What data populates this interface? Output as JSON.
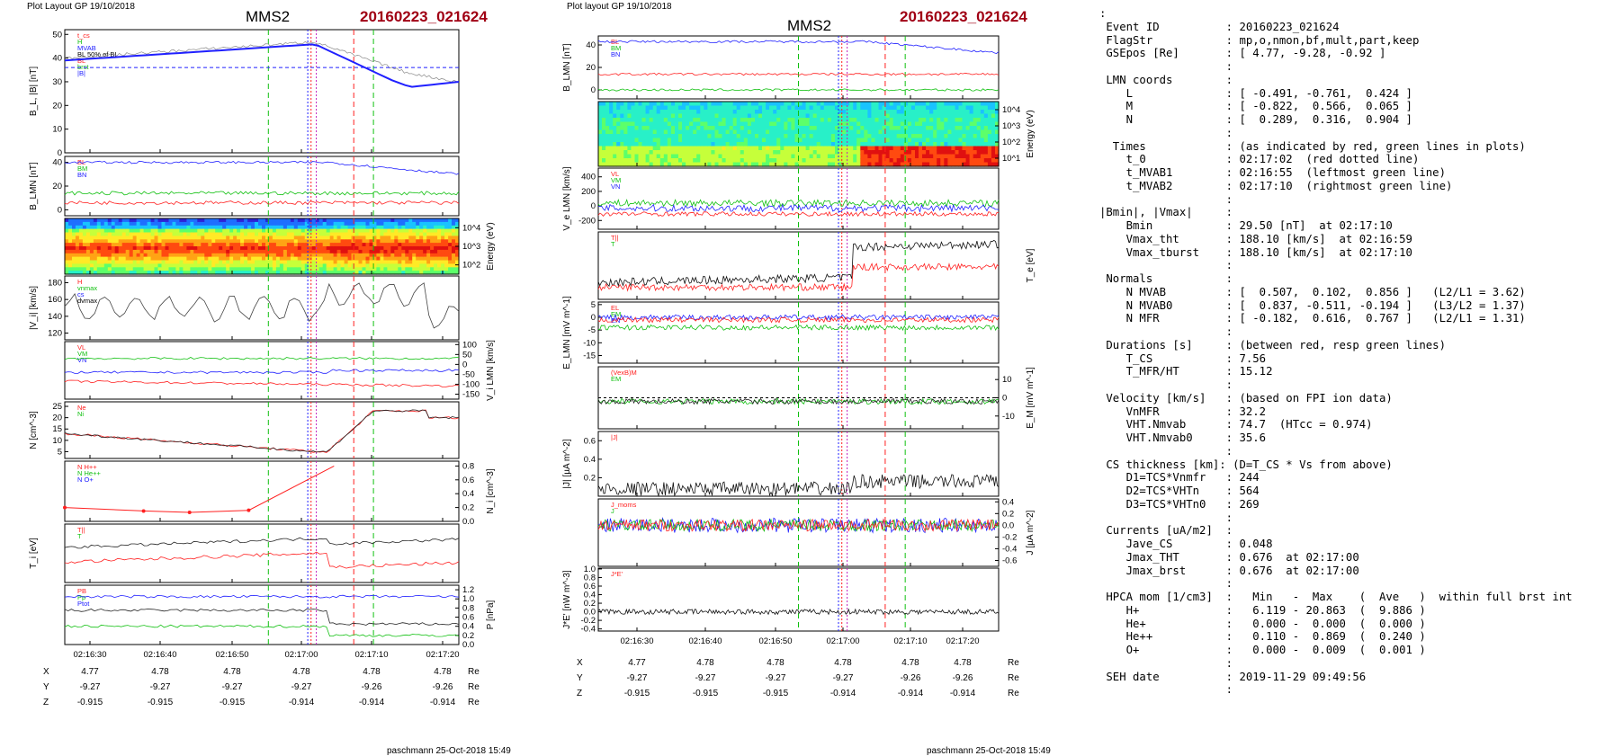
{
  "panels": [
    {
      "header": "Plot Layout GP 19/10/2018",
      "spacecraft": "MMS2",
      "event": "20160223_021624",
      "footer": "paschmann 25-Oct-2018 15:49"
    },
    {
      "header": "Plot layout GP 19/10/2018",
      "spacecraft": "MMS2",
      "event": "20160223_021624",
      "footer": "paschmann 25-Oct-2018 15:49"
    }
  ],
  "chart_data": [
    {
      "type": "line",
      "x_ticks": [
        "02:16:30",
        "02:16:40",
        "02:16:50",
        "02:17:00",
        "02:17:10",
        "02:17:20"
      ],
      "ephemeris": {
        "labels": [
          "X",
          "Y",
          "Z"
        ],
        "unit": "Re",
        "rows": [
          [
            "4.77",
            "4.78",
            "4.78",
            "4.78",
            "4.78",
            "4.78"
          ],
          [
            "-9.27",
            "-9.27",
            "-9.27",
            "-9.27",
            "-9.26",
            "-9.26"
          ],
          [
            "-0.915",
            "-0.915",
            "-0.915",
            "-0.914",
            "-0.914",
            "-0.914"
          ]
        ]
      },
      "rows": [
        {
          "ylabel": "B_L, |B| [nT]",
          "yticks": [
            "0",
            "10",
            "20",
            "30",
            "40",
            "50"
          ],
          "ylim": [
            0,
            52
          ],
          "legend": [
            "t_cs",
            "H",
            "MVAB",
            "BL 50% of BL",
            "BL",
            "brst",
            "|B|"
          ]
        },
        {
          "ylabel": "B_LMN [nT]",
          "yticks": [
            "0",
            "20",
            "40"
          ],
          "ylim": [
            -5,
            45
          ],
          "legend": [
            "BL",
            "BM",
            "BN"
          ]
        },
        {
          "ylabel_right": "Energy (eV)",
          "yticks_right": [
            "10^2",
            "10^3",
            "10^4"
          ],
          "style": "spectrogram"
        },
        {
          "ylabel": "|V_i| [km/s]",
          "yticks": [
            "120",
            "140",
            "160",
            "180"
          ],
          "ylim": [
            112,
            188
          ],
          "legend": [
            "H",
            "vnmax",
            "cs",
            "dvmax"
          ]
        },
        {
          "ylabel_right": "V_i LMN [km/s]",
          "yticks_right": [
            "-150",
            "-100",
            "-50",
            "0",
            "50",
            "100"
          ],
          "ylim": [
            -175,
            115
          ],
          "legend": [
            "VL",
            "VM",
            "VN"
          ]
        },
        {
          "ylabel": "N [cm^-3]",
          "yticks": [
            "5",
            "10",
            "15",
            "20",
            "25"
          ],
          "ylim": [
            2,
            27
          ],
          "legend": [
            "Ne",
            "Ni"
          ]
        },
        {
          "ylabel_right": "N_i [cm^-3]",
          "yticks_right": [
            "0.0",
            "0.2",
            "0.4",
            "0.6",
            "0.8"
          ],
          "ylim": [
            0,
            0.87
          ],
          "legend": [
            "N H++",
            "N He++",
            "N O+"
          ],
          "series": [
            {
              "name": "N He++",
              "x": [
                "02:16:24",
                "02:16:36",
                "02:16:43",
                "02:16:52",
                "02:17:05"
              ],
              "values": [
                0.2,
                0.15,
                0.13,
                0.16,
                0.8
              ]
            }
          ]
        },
        {
          "ylabel": "T_i [eV]",
          "legend": [
            "T||",
            "T"
          ]
        },
        {
          "ylabel_right": "P [nPa]",
          "yticks_right": [
            "0.0",
            "0.2",
            "0.4",
            "0.6",
            "0.8",
            "1.0",
            "1.2"
          ],
          "ylim": [
            0,
            1.3
          ],
          "legend": [
            "PB",
            "Pp",
            "Ptot"
          ]
        }
      ]
    },
    {
      "type": "line",
      "x_ticks": [
        "02:16:30",
        "02:16:40",
        "02:16:50",
        "02:17:00",
        "02:17:10",
        "02:17:20"
      ],
      "ephemeris": {
        "labels": [
          "X",
          "Y",
          "Z"
        ],
        "unit": "Re",
        "rows": [
          [
            "4.77",
            "4.78",
            "4.78",
            "4.78",
            "4.78",
            "4.78"
          ],
          [
            "-9.27",
            "-9.27",
            "-9.27",
            "-9.27",
            "-9.26",
            "-9.26"
          ],
          [
            "-0.915",
            "-0.915",
            "-0.915",
            "-0.914",
            "-0.914",
            "-0.914"
          ]
        ]
      },
      "rows": [
        {
          "ylabel": "B_LMN [nT]",
          "yticks": [
            "0",
            "20",
            "40"
          ],
          "ylim": [
            -8,
            48
          ],
          "legend": [
            "BL",
            "BM",
            "BN"
          ]
        },
        {
          "ylabel_right": "Energy (eV)",
          "yticks_right": [
            "10^1",
            "10^2",
            "10^3",
            "10^4"
          ],
          "style": "spectrogram"
        },
        {
          "ylabel": "V_e LMN [km/s]",
          "yticks": [
            "-200",
            "0",
            "200",
            "400"
          ],
          "ylim": [
            -320,
            520
          ],
          "legend": [
            "VL",
            "VM",
            "VN"
          ]
        },
        {
          "ylabel_right": "T_e [eV]",
          "legend": [
            "T||",
            "T"
          ]
        },
        {
          "ylabel": "E_LMN [mV m^-1]",
          "yticks": [
            "-15",
            "-10",
            "-5",
            "0",
            "5"
          ],
          "ylim": [
            -18,
            6
          ],
          "legend": [
            "EL",
            "EM",
            "EN"
          ]
        },
        {
          "ylabel_right": "E_M [mV m^-1]",
          "yticks_right": [
            "-10",
            "0",
            "10"
          ],
          "ylim": [
            -17,
            17
          ],
          "legend": [
            "(VexB)M",
            "EM"
          ]
        },
        {
          "ylabel": "|J| [µA m^-2]",
          "yticks": [
            "0.2",
            "0.4",
            "0.6"
          ],
          "ylim": [
            0,
            0.7
          ],
          "legend": [
            "|J|"
          ]
        },
        {
          "ylabel_right": "J [µA m^-2]",
          "yticks_right": [
            "-0.6",
            "-0.4",
            "-0.2",
            "0.0",
            "0.2",
            "0.4"
          ],
          "ylim": [
            -0.7,
            0.45
          ],
          "legend": [
            "J_moms",
            "J"
          ]
        },
        {
          "ylabel": "J*E' [nW m^-3]",
          "yticks": [
            "-0.4",
            "-0.2",
            "0.0",
            "0.2",
            "0.4",
            "0.6",
            "0.8",
            "1.0"
          ],
          "ylim": [
            -0.45,
            1.02
          ],
          "legend": [
            "J*E'"
          ]
        }
      ]
    }
  ],
  "summary": [
    ":",
    " Event ID          : 20160223_021624",
    " FlagStr           : mp,o,nmon,bf,mult,part,keep",
    " GSEpos [Re]       : [ 4.77, -9.28, -0.92 ]",
    "                   :",
    " LMN coords        :",
    "    L              : [ -0.491, -0.761,  0.424 ]",
    "    M              : [ -0.822,  0.566,  0.065 ]",
    "    N              : [  0.289,  0.316,  0.904 ]",
    "                   :",
    "  Times            : (as indicated by red, green lines in plots)",
    "    t_0            : 02:17:02  (red dotted line)",
    "    t_MVAB1        : 02:16:55  (leftmost green line)",
    "    t_MVAB2        : 02:17:10  (rightmost green line)",
    "                   :",
    "|Bmin|, |Vmax|     :",
    "    Bmin           : 29.50 [nT]  at 02:17:10",
    "    Vmax_tht       : 188.10 [km/s]  at 02:16:59",
    "    Vmax_tburst    : 188.10 [km/s]  at 02:17:10",
    "                   :",
    " Normals           :",
    "    N MVAB         : [  0.507,  0.102,  0.856 ]   (L2/L1 = 3.62)",
    "    N MVAB0        : [  0.837, -0.511, -0.194 ]   (L3/L2 = 1.37)",
    "    N MFR          : [ -0.182,  0.616,  0.767 ]   (L2/L1 = 1.31)",
    "                   :",
    " Durations [s]     : (between red, resp green lines)",
    "    T_CS           : 7.56",
    "    T_MFR/HT       : 15.12",
    "                   :",
    " Velocity [km/s]   : (based on FPI ion data)",
    "    VnMFR          : 32.2",
    "    VHT.Nmvab      : 74.7  (HTcc = 0.974)",
    "    VHT.Nmvab0     : 35.6",
    "                   :",
    " CS thickness [km]: (D=T_CS * Vs from above)",
    "    D1=TCS*Vnmfr   : 244",
    "    D2=TCS*VHTn    : 564",
    "    D3=TCS*VHTn0   : 269",
    "                   :",
    " Currents [uA/m2]  :",
    "    Jave_CS        : 0.048",
    "    Jmax_THT       : 0.676  at 02:17:00",
    "    Jmax_brst      : 0.676  at 02:17:00",
    "                   :",
    " HPCA mom [1/cm3]  :   Min   -  Max    (  Ave   )  within full brst int",
    "    H+             :   6.119 - 20.863  (  9.886 )",
    "    He+            :   0.000 -  0.000  (  0.000 )",
    "    He++           :   0.110 -  0.869  (  0.240 )",
    "    O+             :   0.000 -  0.009  (  0.001 )",
    "                   :",
    " SEH date          : 2019-11-29 09:49:56",
    "                   :"
  ],
  "colors": {
    "event": "#a00014",
    "red": "#ff2020",
    "green": "#10c010",
    "blue": "#2020ff",
    "black": "#000000"
  }
}
